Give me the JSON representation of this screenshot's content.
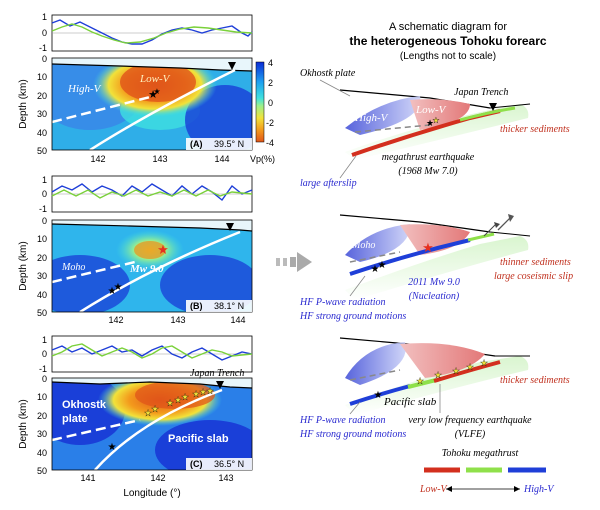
{
  "header": {
    "line1": "A schematic diagram for",
    "line2": "the heterogeneous Tohoku forearc",
    "line3": "(Lengths not to scale)"
  },
  "axes": {
    "depth_label": "Depth (km)",
    "longitude_label": "Longitude (°)",
    "depth_ticks": [
      "0",
      "10",
      "20",
      "30",
      "40",
      "50"
    ],
    "wave_ticks": [
      "1",
      "0",
      "-1"
    ]
  },
  "panels": [
    {
      "tag": "(A)",
      "lat": "39.5° N",
      "lon_ticks": [
        "142",
        "143",
        "144"
      ]
    },
    {
      "tag": "(B)",
      "lat": "38.1° N",
      "lon_ticks": [
        "142",
        "143",
        "144"
      ]
    },
    {
      "tag": "(C)",
      "lat": "36.5° N",
      "lon_ticks": [
        "141",
        "142",
        "143"
      ]
    }
  ],
  "colorbar": {
    "ticks": [
      "4",
      "2",
      "0",
      "-2",
      "-4"
    ],
    "label": "Vp(%)",
    "colors": [
      "#0b2bd6",
      "#1ea0f0",
      "#3fe0e0",
      "#9ef08a",
      "#f2e23a",
      "#f39a1c",
      "#e0551a"
    ]
  },
  "labels": {
    "a_highv": "High-V",
    "a_lowv": "Low-V",
    "b_moho": "Moho",
    "b_mw": "Mw 9.0",
    "c_okh1": "Okhostk",
    "c_okh2": "plate",
    "c_pac": "Pacific slab",
    "c_trench": "Japan Trench"
  },
  "schematic": {
    "s1": {
      "okhostk": "Okhostk plate",
      "trench": "Japan Trench",
      "highv": "High-V",
      "lowv": "Low-V",
      "thicker": "thicker sediments",
      "mega1": "megathrust earthquake",
      "mega2": "(1968 Mw 7.0)",
      "afterslip": "large afterslip"
    },
    "s2": {
      "moho": "Moho",
      "thinner": "thinner sediments",
      "coseismic": "large coseismic slip",
      "mw1": "2011 Mw 9.0",
      "mw2": "(Nucleation)",
      "hf1": "HF P-wave radiation",
      "hf2": "HF strong ground motions"
    },
    "s3": {
      "pac": "Pacific slab",
      "thicker": "thicker sediments",
      "vlf1": "very low frequency earthquake",
      "vlf2": "(VLFE)",
      "hf1": "HF P-wave radiation",
      "hf2": "HF strong ground motions"
    }
  },
  "legend": {
    "title": "Tohoku megathrust",
    "low": "Low-V",
    "high": "High-V",
    "colors": {
      "red": "#d32f1e",
      "green": "#8fe04a",
      "blue": "#1f3fd8"
    }
  }
}
